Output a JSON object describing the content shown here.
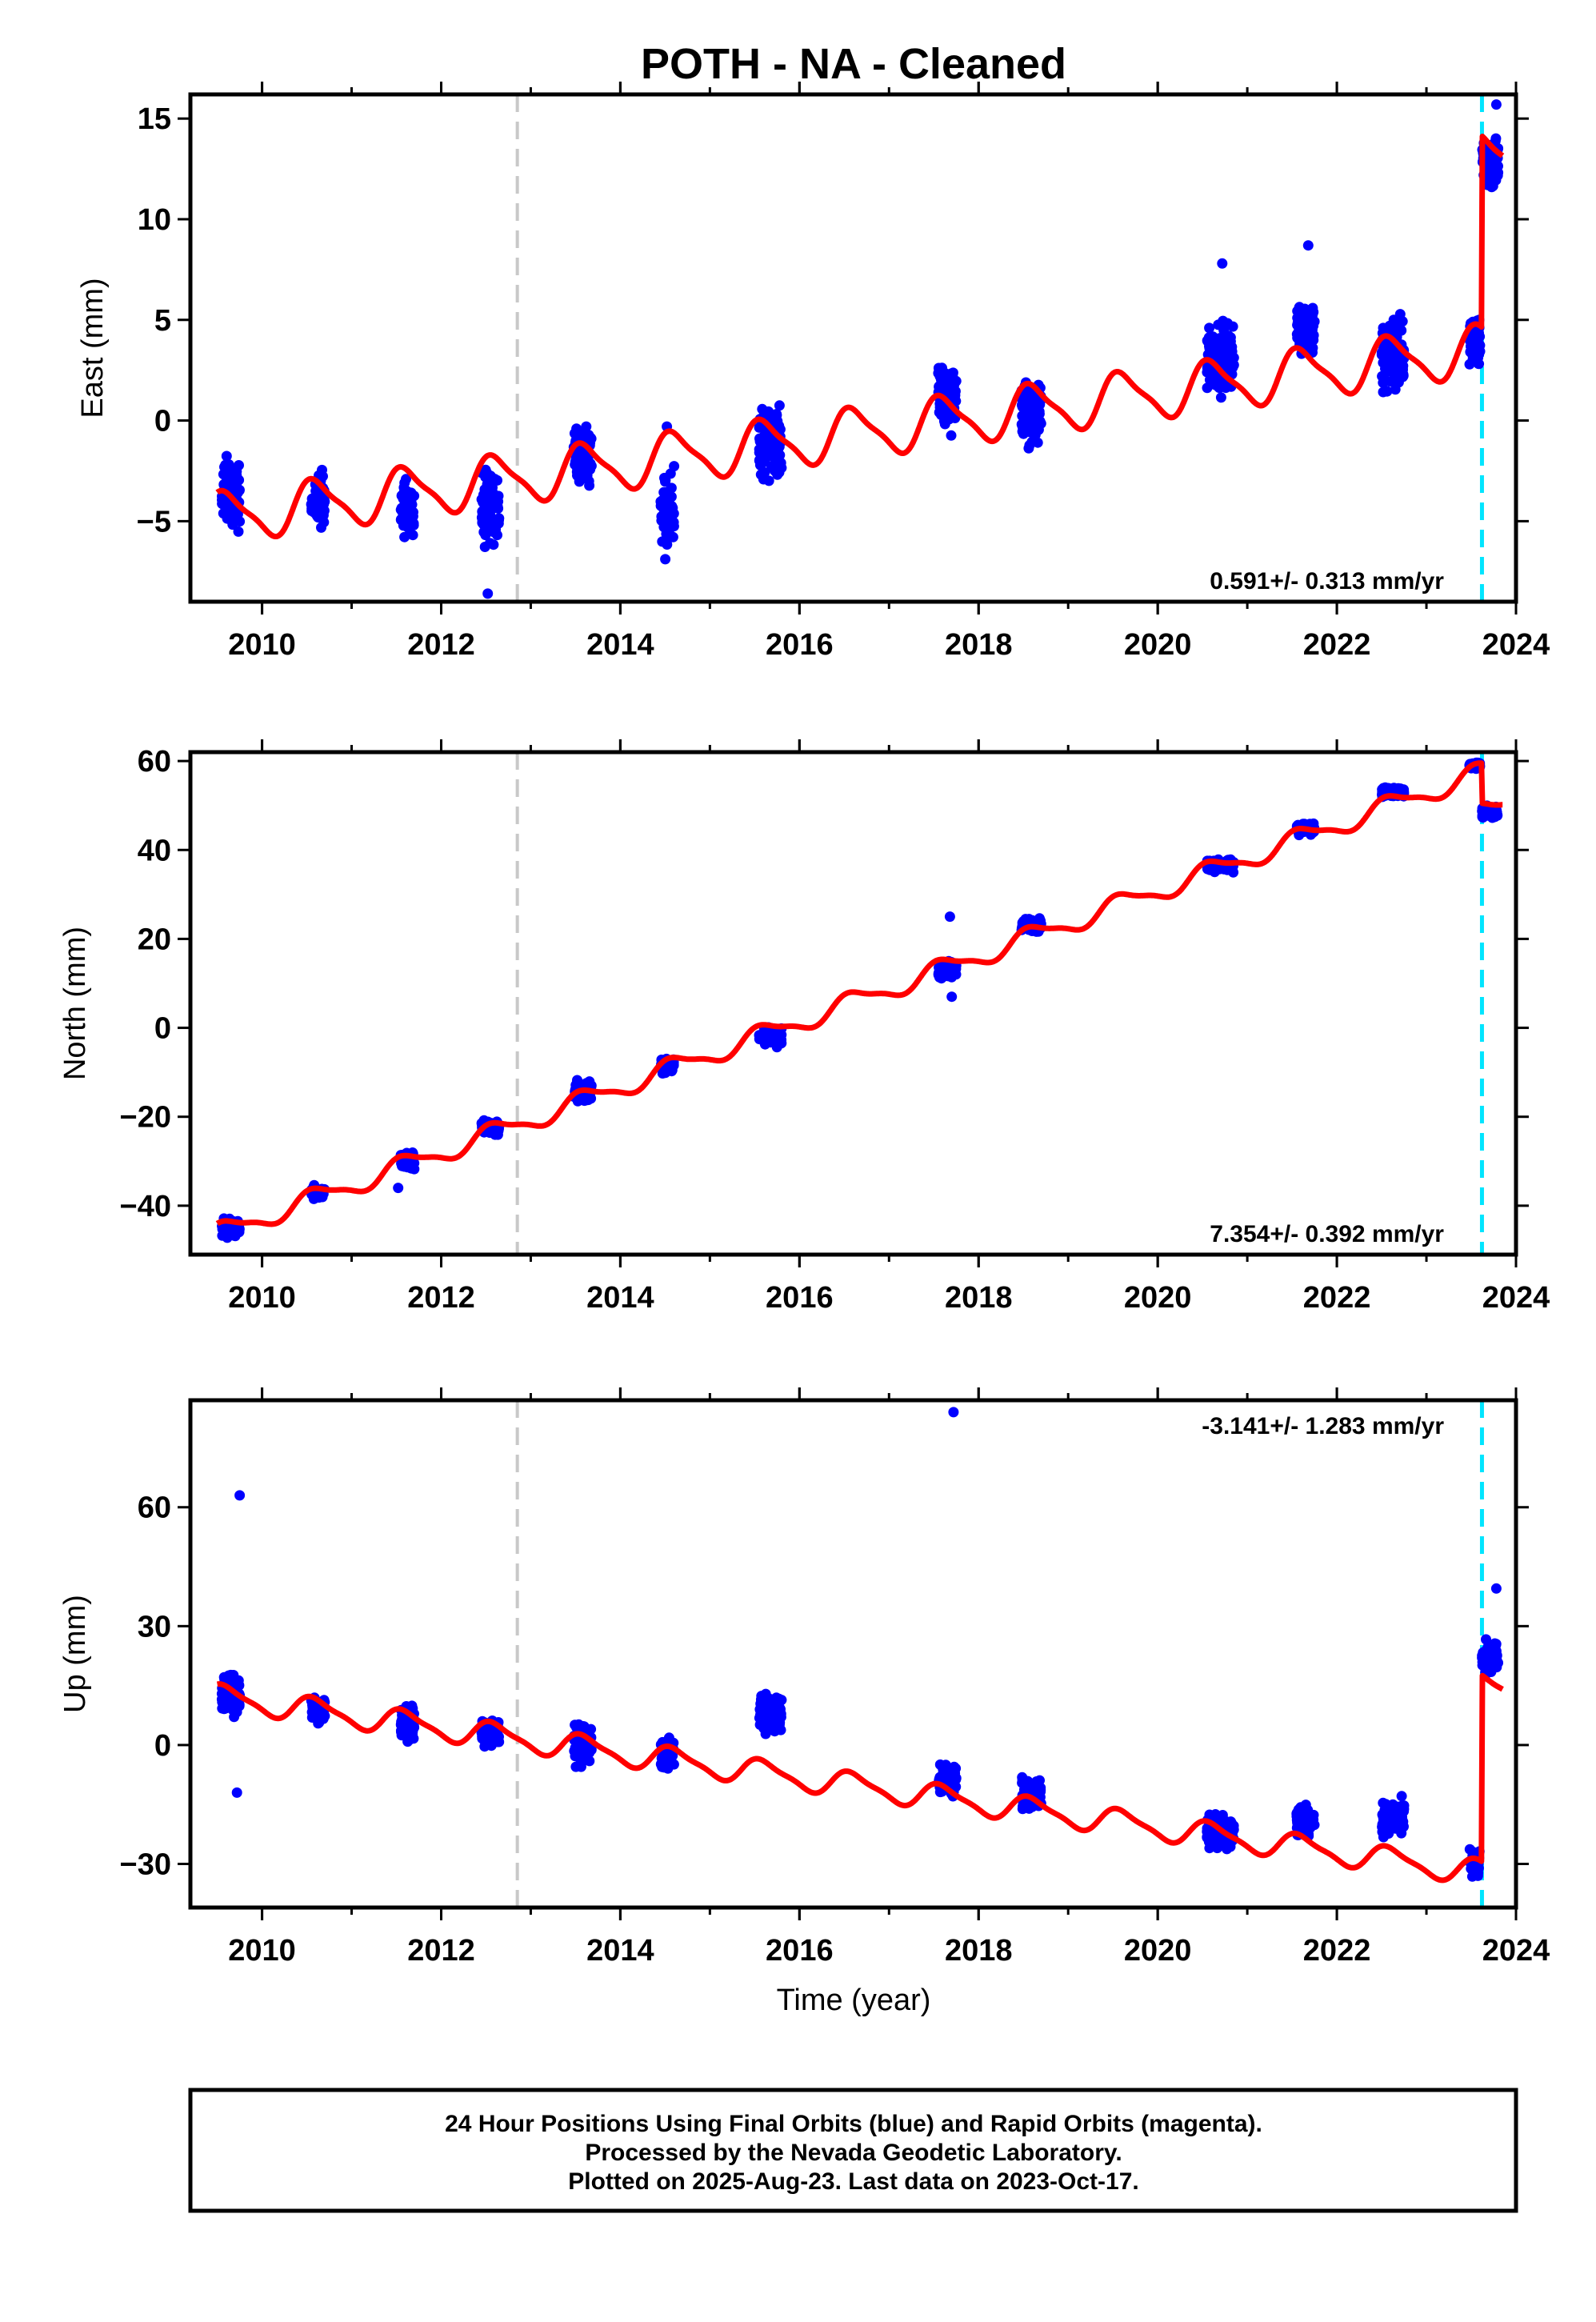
{
  "title": "POTH  - NA - Cleaned",
  "xlabel": "Time (year)",
  "colors": {
    "points": "#0000ff",
    "model": "#ff0000",
    "equipment_change": "#c8c8c8",
    "event": "#00e5ff",
    "frame": "#000000"
  },
  "footer_lines": [
    "24 Hour Positions Using Final Orbits (blue) and Rapid Orbits (magenta).",
    "Processed by the Nevada Geodetic Laboratory.",
    "Plotted on 2025-Aug-23. Last data on 2023-Oct-17."
  ],
  "chart_data": [
    {
      "type": "scatter",
      "ylabel": "East (mm)",
      "rate": "0.591+/- 0.313 mm/yr",
      "rate_position": "bottom-right",
      "xlim": [
        2009.2,
        2024.0
      ],
      "ylim": [
        -9.0,
        16.2
      ],
      "xticks": [
        2010,
        2012,
        2014,
        2016,
        2018,
        2020,
        2022,
        2024
      ],
      "yticks": [
        -5,
        0,
        5,
        10,
        15
      ],
      "vlines": [
        {
          "x": 2012.85,
          "kind": "equipment_change"
        },
        {
          "x": 2023.62,
          "kind": "event"
        }
      ],
      "model": {
        "base": -4.8,
        "base_year": 2009.55,
        "rate": 0.591,
        "annual_amplitude": 1.2,
        "semiannual_amplitude": 0.3,
        "offsets": [
          {
            "x": 2023.62,
            "value": 9.5
          }
        ]
      },
      "clusters": [
        {
          "start": 2009.55,
          "end": 2009.75,
          "center": -3.6,
          "spread": 2.6
        },
        {
          "start": 2010.55,
          "end": 2010.7,
          "center": -4.0,
          "spread": 1.8
        },
        {
          "start": 2011.55,
          "end": 2011.7,
          "center": -4.5,
          "spread": 2.0
        },
        {
          "start": 2012.45,
          "end": 2012.65,
          "center": -4.2,
          "spread": 2.6
        },
        {
          "start": 2013.48,
          "end": 2013.68,
          "center": -1.8,
          "spread": 2.2
        },
        {
          "start": 2014.45,
          "end": 2014.6,
          "center": -4.5,
          "spread": 2.6
        },
        {
          "start": 2015.55,
          "end": 2015.8,
          "center": -1.2,
          "spread": 2.5
        },
        {
          "start": 2017.55,
          "end": 2017.75,
          "center": 1.2,
          "spread": 2.3
        },
        {
          "start": 2018.48,
          "end": 2018.7,
          "center": 0.5,
          "spread": 2.2
        },
        {
          "start": 2020.55,
          "end": 2020.85,
          "center": 3.2,
          "spread": 2.3
        },
        {
          "start": 2021.55,
          "end": 2021.75,
          "center": 4.5,
          "spread": 1.8
        },
        {
          "start": 2022.5,
          "end": 2022.75,
          "center": 3.2,
          "spread": 2.5
        },
        {
          "start": 2023.48,
          "end": 2023.6,
          "center": 4.0,
          "spread": 1.8
        },
        {
          "start": 2023.62,
          "end": 2023.8,
          "center": 12.8,
          "spread": 1.7
        }
      ],
      "outliers": [
        {
          "x": 2012.52,
          "y": -8.6
        },
        {
          "x": 2014.52,
          "y": -0.3
        },
        {
          "x": 2020.72,
          "y": 7.8
        },
        {
          "x": 2021.68,
          "y": 8.7
        },
        {
          "x": 2023.78,
          "y": 15.7
        }
      ]
    },
    {
      "type": "scatter",
      "ylabel": "North (mm)",
      "rate": "7.354+/- 0.392 mm/yr",
      "rate_position": "bottom-right",
      "xlim": [
        2009.2,
        2024.0
      ],
      "ylim": [
        -51.0,
        62.0
      ],
      "xticks": [
        2010,
        2012,
        2014,
        2016,
        2018,
        2020,
        2022,
        2024
      ],
      "yticks": [
        -40,
        -20,
        0,
        20,
        40,
        60
      ],
      "vlines": [
        {
          "x": 2012.85,
          "kind": "equipment_change"
        },
        {
          "x": 2023.62,
          "kind": "event"
        }
      ],
      "model": {
        "base": -46.0,
        "base_year": 2009.55,
        "rate": 7.354,
        "annual_amplitude": 2.2,
        "semiannual_amplitude": 0.6,
        "offsets": [
          {
            "x": 2023.62,
            "value": -9.0
          }
        ]
      },
      "clusters": [
        {
          "start": 2009.55,
          "end": 2009.75,
          "center": -45.0,
          "spread": 2.5
        },
        {
          "start": 2010.55,
          "end": 2010.7,
          "center": -37.0,
          "spread": 2.0
        },
        {
          "start": 2011.55,
          "end": 2011.7,
          "center": -30.0,
          "spread": 2.5
        },
        {
          "start": 2012.45,
          "end": 2012.65,
          "center": -22.5,
          "spread": 2.0
        },
        {
          "start": 2013.48,
          "end": 2013.68,
          "center": -14.5,
          "spread": 3.0
        },
        {
          "start": 2014.45,
          "end": 2014.6,
          "center": -8.5,
          "spread": 2.5
        },
        {
          "start": 2015.55,
          "end": 2015.8,
          "center": -2.0,
          "spread": 3.0
        },
        {
          "start": 2017.55,
          "end": 2017.75,
          "center": 13.0,
          "spread": 2.5
        },
        {
          "start": 2018.48,
          "end": 2018.7,
          "center": 23.0,
          "spread": 2.0
        },
        {
          "start": 2020.55,
          "end": 2020.85,
          "center": 36.5,
          "spread": 1.8
        },
        {
          "start": 2021.55,
          "end": 2021.75,
          "center": 45.0,
          "spread": 1.8
        },
        {
          "start": 2022.5,
          "end": 2022.75,
          "center": 53.0,
          "spread": 1.5
        },
        {
          "start": 2023.48,
          "end": 2023.6,
          "center": 59.0,
          "spread": 1.2
        },
        {
          "start": 2023.62,
          "end": 2023.8,
          "center": 48.5,
          "spread": 2.0
        }
      ],
      "outliers": [
        {
          "x": 2017.68,
          "y": 25.0
        },
        {
          "x": 2017.7,
          "y": 7.0
        },
        {
          "x": 2011.52,
          "y": -36.0
        }
      ]
    },
    {
      "type": "scatter",
      "ylabel": "Up (mm)",
      "rate": "-3.141+/- 1.283 mm/yr",
      "rate_position": "top-right",
      "xlim": [
        2009.2,
        2024.0
      ],
      "ylim": [
        -41.0,
        87.0
      ],
      "xticks": [
        2010,
        2012,
        2014,
        2016,
        2018,
        2020,
        2022,
        2024
      ],
      "yticks": [
        -30,
        0,
        30,
        60
      ],
      "vlines": [
        {
          "x": 2012.85,
          "kind": "equipment_change"
        },
        {
          "x": 2023.62,
          "kind": "event"
        }
      ],
      "model": {
        "base": 12.0,
        "base_year": 2009.55,
        "rate": -3.141,
        "annual_amplitude": 3.0,
        "semiannual_amplitude": 0.8,
        "offsets": [
          {
            "x": 2023.62,
            "value": 47.0
          }
        ]
      },
      "clusters": [
        {
          "start": 2009.55,
          "end": 2009.75,
          "center": 13.0,
          "spread": 7.0
        },
        {
          "start": 2010.55,
          "end": 2010.7,
          "center": 9.0,
          "spread": 4.5
        },
        {
          "start": 2011.55,
          "end": 2011.7,
          "center": 5.0,
          "spread": 6.0
        },
        {
          "start": 2012.45,
          "end": 2012.65,
          "center": 3.0,
          "spread": 5.0
        },
        {
          "start": 2013.48,
          "end": 2013.68,
          "center": 0.0,
          "spread": 6.5
        },
        {
          "start": 2014.45,
          "end": 2014.6,
          "center": -2.0,
          "spread": 5.0
        },
        {
          "start": 2015.55,
          "end": 2015.8,
          "center": 8.0,
          "spread": 6.0
        },
        {
          "start": 2017.55,
          "end": 2017.75,
          "center": -9.0,
          "spread": 5.5
        },
        {
          "start": 2018.48,
          "end": 2018.7,
          "center": -12.0,
          "spread": 5.0
        },
        {
          "start": 2020.55,
          "end": 2020.85,
          "center": -22.0,
          "spread": 5.5
        },
        {
          "start": 2021.55,
          "end": 2021.75,
          "center": -19.0,
          "spread": 5.0
        },
        {
          "start": 2022.5,
          "end": 2022.75,
          "center": -18.0,
          "spread": 6.0
        },
        {
          "start": 2023.48,
          "end": 2023.6,
          "center": -30.0,
          "spread": 5.0
        },
        {
          "start": 2023.62,
          "end": 2023.8,
          "center": 22.0,
          "spread": 5.5
        }
      ],
      "outliers": [
        {
          "x": 2009.75,
          "y": 63.0
        },
        {
          "x": 2009.72,
          "y": -12.0
        },
        {
          "x": 2017.72,
          "y": 84.0
        },
        {
          "x": 2023.78,
          "y": 39.5
        }
      ]
    }
  ]
}
